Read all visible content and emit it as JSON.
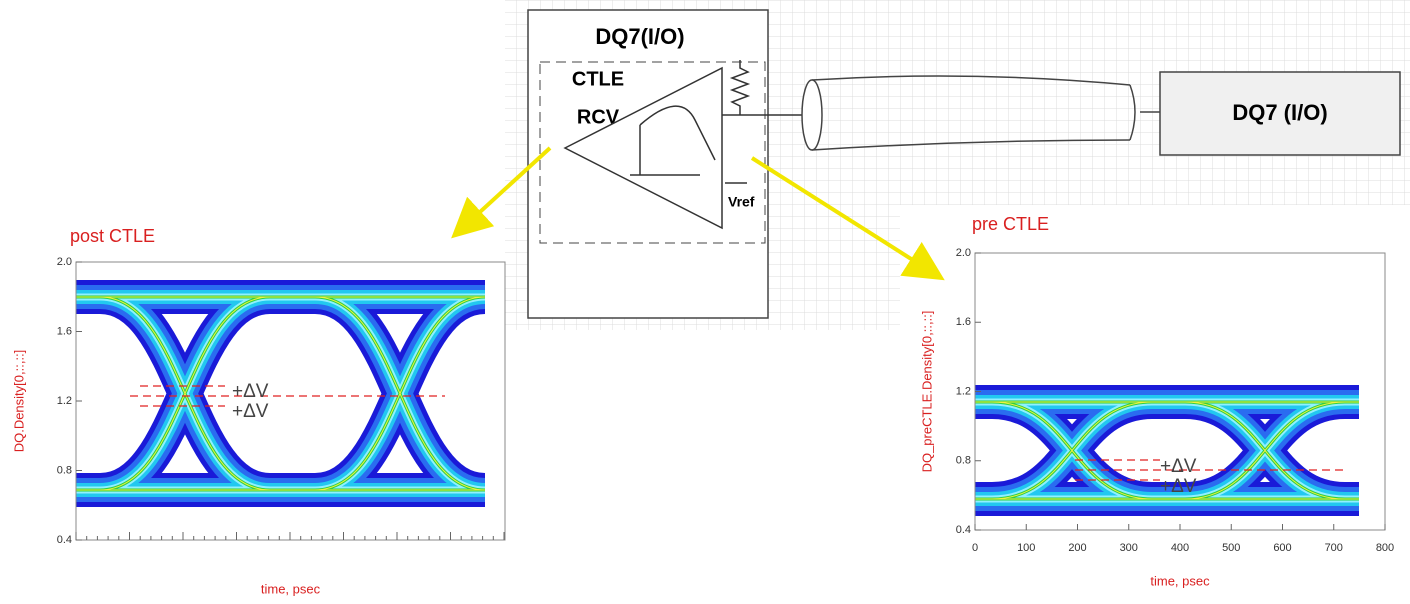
{
  "schematic": {
    "block_title": "DQ7(I/O)",
    "ctle_label": "CTLE",
    "rcv_label": "RCV",
    "vref_label": "Vref",
    "remote_block": "DQ7 (I/O)"
  },
  "plots": [
    {
      "title": "post CTLE",
      "y_label": "DQ.Density[0,::,::]",
      "x_label": "time, psec",
      "ylim": [
        0.4,
        2.0
      ],
      "yticks": [
        {
          "value": 0.4,
          "label": "0.4"
        },
        {
          "value": 0.8,
          "label": "0.8"
        },
        {
          "value": 1.2,
          "label": "1.2"
        },
        {
          "value": 1.6,
          "label": "1.6"
        },
        {
          "value": 2.0,
          "label": "2.0"
        }
      ],
      "annotations": [
        "+ΔV",
        "+ΔV"
      ]
    },
    {
      "title": "pre CTLE",
      "y_label": "DQ_preCTLE.Density[0,::,::]",
      "x_label": "time, psec",
      "xlim": [
        0,
        800
      ],
      "xticks": [
        0,
        100,
        200,
        300,
        400,
        500,
        600,
        700,
        800
      ],
      "ylim": [
        0.4,
        2.0
      ],
      "yticks": [
        {
          "value": 0.4,
          "label": "0.4"
        },
        {
          "value": 0.8,
          "label": "0.8"
        },
        {
          "value": 1.2,
          "label": "1.2"
        },
        {
          "value": 1.6,
          "label": "1.6"
        },
        {
          "value": 2.0,
          "label": "2.0"
        }
      ],
      "annotations": [
        "+ΔV",
        "+ΔV"
      ]
    }
  ]
}
